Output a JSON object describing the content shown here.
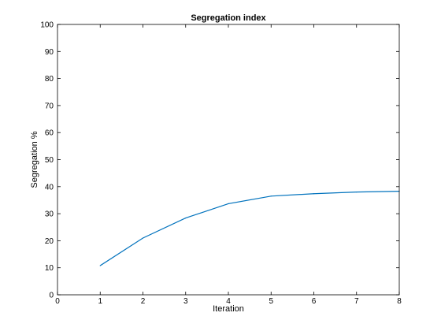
{
  "chart_data": {
    "type": "line",
    "title": "Segregation index",
    "xlabel": "Iteration",
    "ylabel": "Segregation %",
    "xlim": [
      0,
      8
    ],
    "ylim": [
      0,
      100
    ],
    "xticks": [
      0,
      1,
      2,
      3,
      4,
      5,
      6,
      7,
      8
    ],
    "yticks": [
      0,
      10,
      20,
      30,
      40,
      50,
      60,
      70,
      80,
      90,
      100
    ],
    "grid": false,
    "series": [
      {
        "color": "#0072bd",
        "x": [
          1,
          2,
          3,
          4,
          5,
          6,
          7,
          8
        ],
        "y": [
          10.8,
          21.0,
          28.4,
          33.7,
          36.5,
          37.4,
          38.0,
          38.3
        ]
      }
    ]
  }
}
